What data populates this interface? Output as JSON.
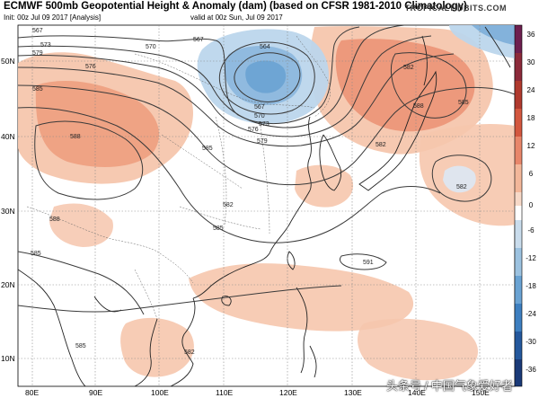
{
  "header": {
    "title": "ECMWF 500mb Geopotential Height & Anomaly (dam) (based on CFSR 1981-2010 Climatology)",
    "init": "Init: 00z Jul 09 2017",
    "analysis": "[Analysis]",
    "valid": "valid at 00z Sun, Jul 09 2017",
    "brand": "TROPICALTIDBITS.COM"
  },
  "axes": {
    "lat_labels": [
      "50N",
      "40N",
      "30N",
      "20N",
      "10N"
    ],
    "lon_labels": [
      "80E",
      "90E",
      "100E",
      "110E",
      "120E",
      "130E",
      "140E",
      "150E"
    ]
  },
  "colorbar": {
    "labels": [
      "36",
      "30",
      "24",
      "18",
      "12",
      "6",
      "0",
      "-6",
      "-12",
      "-18",
      "-24",
      "-30",
      "-36"
    ],
    "colors": [
      "#6d1f4f",
      "#8c2a3a",
      "#b03a2e",
      "#d3573f",
      "#e8866a",
      "#f3b79a",
      "#f7d9c8",
      "#ffffff",
      "#c9dcec",
      "#9cc2e0",
      "#6aa3d3",
      "#3d7fc0",
      "#24589d",
      "#1a3a78"
    ]
  },
  "contour_labels": [
    {
      "t": "567"
    },
    {
      "t": "573"
    },
    {
      "t": "570"
    },
    {
      "t": "567"
    },
    {
      "t": "564"
    },
    {
      "t": "567"
    },
    {
      "t": "570"
    },
    {
      "t": "573"
    },
    {
      "t": "576"
    },
    {
      "t": "579"
    },
    {
      "t": "579"
    },
    {
      "t": "576"
    },
    {
      "t": "582"
    },
    {
      "t": "588"
    },
    {
      "t": "585"
    },
    {
      "t": "585"
    },
    {
      "t": "588"
    },
    {
      "t": "585"
    },
    {
      "t": "582"
    },
    {
      "t": "585"
    },
    {
      "t": "585"
    },
    {
      "t": "588"
    },
    {
      "t": "591"
    },
    {
      "t": "582"
    },
    {
      "t": "582"
    },
    {
      "t": "585"
    },
    {
      "t": "582"
    }
  ],
  "watermark": "头条号 / 中国气象爱好者"
}
